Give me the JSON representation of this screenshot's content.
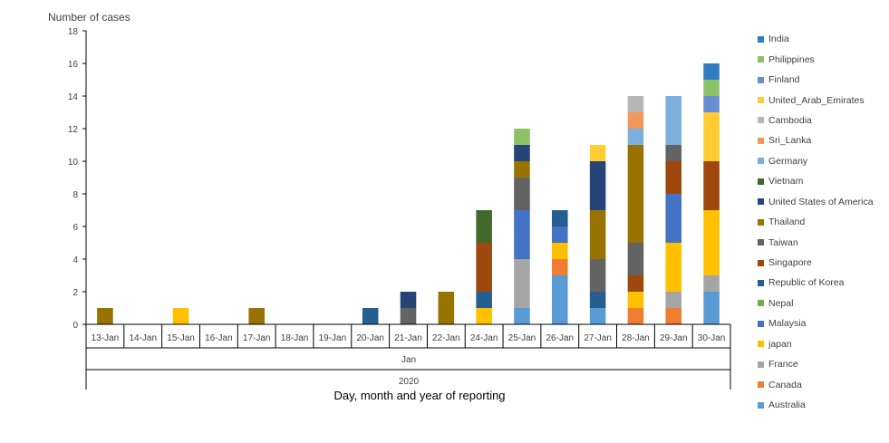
{
  "chart_data": {
    "type": "bar",
    "stacked": true,
    "ylabel": "Number of cases",
    "xlabel": "Day, month  and year of reporting",
    "month_label": "Jan",
    "year_label": "2020",
    "ylim": [
      0,
      18
    ],
    "yticks": [
      0,
      2,
      4,
      6,
      8,
      10,
      12,
      14,
      16,
      18
    ],
    "categories": [
      "13-Jan",
      "14-Jan",
      "15-Jan",
      "16-Jan",
      "17-Jan",
      "18-Jan",
      "19-Jan",
      "20-Jan",
      "21-Jan",
      "22-Jan",
      "24-Jan",
      "25-Jan",
      "26-Jan",
      "27-Jan",
      "28-Jan",
      "29-Jan",
      "30-Jan"
    ],
    "legend_position": "right",
    "series": [
      {
        "name": "Australia",
        "color": "#5B9BD5",
        "values": [
          0,
          0,
          0,
          0,
          0,
          0,
          0,
          0,
          0,
          0,
          0,
          1,
          3,
          1,
          0,
          0,
          2
        ]
      },
      {
        "name": "Canada",
        "color": "#ED7D31",
        "values": [
          0,
          0,
          0,
          0,
          0,
          0,
          0,
          0,
          0,
          0,
          0,
          0,
          1,
          0,
          1,
          1,
          0
        ]
      },
      {
        "name": "France",
        "color": "#A5A5A5",
        "values": [
          0,
          0,
          0,
          0,
          0,
          0,
          0,
          0,
          0,
          0,
          0,
          3,
          0,
          0,
          0,
          1,
          1
        ]
      },
      {
        "name": "japan",
        "color": "#FFC000",
        "values": [
          0,
          0,
          1,
          0,
          0,
          0,
          0,
          0,
          0,
          0,
          1,
          0,
          1,
          0,
          1,
          3,
          4
        ]
      },
      {
        "name": "Malaysia",
        "color": "#4472C4",
        "values": [
          0,
          0,
          0,
          0,
          0,
          0,
          0,
          0,
          0,
          0,
          0,
          3,
          1,
          0,
          0,
          3,
          0
        ]
      },
      {
        "name": "Nepal",
        "color": "#70AD47",
        "values": [
          0,
          0,
          0,
          0,
          0,
          0,
          0,
          0,
          0,
          0,
          0,
          0,
          0,
          0,
          0,
          0,
          0
        ]
      },
      {
        "name": "Republic of Korea",
        "color": "#255E91",
        "values": [
          0,
          0,
          0,
          0,
          0,
          0,
          0,
          1,
          0,
          0,
          1,
          0,
          1,
          1,
          0,
          0,
          0
        ]
      },
      {
        "name": "Singapore",
        "color": "#9E480E",
        "values": [
          0,
          0,
          0,
          0,
          0,
          0,
          0,
          0,
          0,
          0,
          3,
          0,
          0,
          0,
          1,
          2,
          3
        ]
      },
      {
        "name": "Taiwan",
        "color": "#636363",
        "values": [
          0,
          0,
          0,
          0,
          0,
          0,
          0,
          0,
          1,
          0,
          0,
          2,
          0,
          2,
          2,
          1,
          0
        ]
      },
      {
        "name": "Thailand",
        "color": "#997300",
        "values": [
          1,
          0,
          0,
          0,
          1,
          0,
          0,
          0,
          0,
          2,
          0,
          1,
          0,
          3,
          6,
          0,
          0
        ]
      },
      {
        "name": "United States of America",
        "color": "#264478",
        "values": [
          0,
          0,
          0,
          0,
          0,
          0,
          0,
          0,
          1,
          0,
          0,
          1,
          0,
          3,
          0,
          0,
          0
        ]
      },
      {
        "name": "Vietnam",
        "color": "#43682B",
        "values": [
          0,
          0,
          0,
          0,
          0,
          0,
          0,
          0,
          0,
          0,
          2,
          0,
          0,
          0,
          0,
          0,
          0
        ]
      },
      {
        "name": "Germany",
        "color": "#7CAFDD",
        "values": [
          0,
          0,
          0,
          0,
          0,
          0,
          0,
          0,
          0,
          0,
          0,
          0,
          0,
          0,
          1,
          3,
          0
        ]
      },
      {
        "name": "Sri_Lanka",
        "color": "#F1975A",
        "values": [
          0,
          0,
          0,
          0,
          0,
          0,
          0,
          0,
          0,
          0,
          0,
          0,
          0,
          0,
          1,
          0,
          0
        ]
      },
      {
        "name": "Cambodia",
        "color": "#B7B7B7",
        "values": [
          0,
          0,
          0,
          0,
          0,
          0,
          0,
          0,
          0,
          0,
          0,
          0,
          0,
          0,
          1,
          0,
          0
        ]
      },
      {
        "name": "United_Arab_Emirates",
        "color": "#FFCD33",
        "values": [
          0,
          0,
          0,
          0,
          0,
          0,
          0,
          0,
          0,
          0,
          0,
          0,
          0,
          1,
          0,
          0,
          3
        ]
      },
      {
        "name": "Finland",
        "color": "#698ED0",
        "values": [
          0,
          0,
          0,
          0,
          0,
          0,
          0,
          0,
          0,
          0,
          0,
          0,
          0,
          0,
          0,
          0,
          1
        ]
      },
      {
        "name": "Philippines",
        "color": "#8CC168",
        "values": [
          0,
          0,
          0,
          0,
          0,
          0,
          0,
          0,
          0,
          0,
          0,
          1,
          0,
          0,
          0,
          0,
          1
        ]
      },
      {
        "name": "India",
        "color": "#327DC2",
        "values": [
          0,
          0,
          0,
          0,
          0,
          0,
          0,
          0,
          0,
          0,
          0,
          0,
          0,
          0,
          0,
          0,
          1
        ]
      }
    ]
  }
}
